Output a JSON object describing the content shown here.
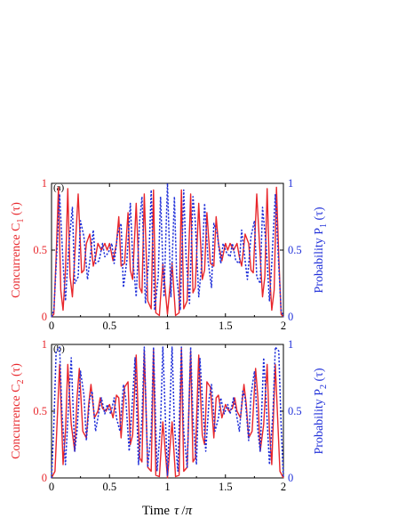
{
  "colors": {
    "concurrence": "#e8262b",
    "probability": "#1f2fd9",
    "axis": "#000000"
  },
  "figure": {
    "x_axis_label_parts": {
      "prefix": "Time",
      "tau": "τ",
      "slash": "/",
      "pi": "π"
    }
  },
  "chart_data": [
    {
      "type": "line",
      "panel_label": "(a)",
      "xlabel": "Time τ/π",
      "ylabel_left": "Concurrence C1 (τ)",
      "ylabel_left_parts": {
        "main": "Concurrence C",
        "sub": "1",
        "arg": " (τ)"
      },
      "ylabel_right": "Probability P1 (τ)",
      "ylabel_right_parts": {
        "main": "Probability P",
        "sub": "1",
        "arg": " (τ)"
      },
      "xlim": [
        0,
        2
      ],
      "ylim": [
        0,
        1
      ],
      "x_ticks": [
        "0",
        "0.5",
        "1",
        "1.5",
        "2"
      ],
      "y_ticks_left": [
        "0",
        "0.5",
        "1"
      ],
      "y_ticks_right": [
        "0",
        "0.5",
        "1"
      ],
      "grid": false,
      "series": [
        {
          "axis": "left",
          "style": "solid",
          "x": [
            0,
            0.02,
            0.04,
            0.06,
            0.08,
            0.1,
            0.12,
            0.14,
            0.16,
            0.18,
            0.2,
            0.23,
            0.26,
            0.28,
            0.3,
            0.33,
            0.36,
            0.38,
            0.4,
            0.43,
            0.46,
            0.48,
            0.5,
            0.53,
            0.56,
            0.58,
            0.6,
            0.63,
            0.66,
            0.68,
            0.7,
            0.73,
            0.76,
            0.78,
            0.8,
            0.83,
            0.86,
            0.88,
            0.9,
            0.93,
            0.96,
            1.0,
            1.04,
            1.07,
            1.1,
            1.12,
            1.14,
            1.17,
            1.2,
            1.22,
            1.24,
            1.27,
            1.3,
            1.32,
            1.34,
            1.37,
            1.4,
            1.42,
            1.44,
            1.47,
            1.5,
            1.52,
            1.54,
            1.57,
            1.6,
            1.62,
            1.64,
            1.67,
            1.7,
            1.72,
            1.74,
            1.77,
            1.8,
            1.82,
            1.84,
            1.86,
            1.88,
            1.9,
            1.92,
            1.94,
            1.96,
            1.98,
            2.0
          ],
          "y": [
            0,
            0.02,
            0.45,
            0.97,
            0.2,
            0.05,
            0.35,
            0.96,
            0.3,
            0.15,
            0.45,
            0.92,
            0.33,
            0.35,
            0.55,
            0.62,
            0.38,
            0.45,
            0.55,
            0.5,
            0.55,
            0.5,
            0.55,
            0.42,
            0.55,
            0.75,
            0.38,
            0.4,
            0.78,
            0.35,
            0.28,
            0.85,
            0.22,
            0.18,
            0.92,
            0.12,
            0.06,
            0.95,
            0.03,
            0.01,
            0.4,
            0.02,
            0.4,
            0.01,
            0.03,
            0.95,
            0.06,
            0.12,
            0.92,
            0.18,
            0.22,
            0.85,
            0.28,
            0.35,
            0.78,
            0.4,
            0.38,
            0.75,
            0.55,
            0.42,
            0.55,
            0.5,
            0.55,
            0.5,
            0.55,
            0.45,
            0.38,
            0.62,
            0.55,
            0.35,
            0.33,
            0.92,
            0.45,
            0.15,
            0.3,
            0.96,
            0.35,
            0.05,
            0.2,
            0.97,
            0.45,
            0.02,
            0
          ]
        },
        {
          "axis": "right",
          "style": "dotted",
          "x": [
            0,
            0.02,
            0.05,
            0.07,
            0.1,
            0.12,
            0.15,
            0.18,
            0.2,
            0.23,
            0.25,
            0.28,
            0.31,
            0.33,
            0.36,
            0.38,
            0.41,
            0.44,
            0.46,
            0.49,
            0.52,
            0.54,
            0.57,
            0.6,
            0.62,
            0.65,
            0.68,
            0.7,
            0.73,
            0.76,
            0.78,
            0.81,
            0.84,
            0.86,
            0.89,
            0.92,
            0.94,
            0.97,
            1.0,
            1.03,
            1.06,
            1.08,
            1.11,
            1.14,
            1.16,
            1.19,
            1.22,
            1.24,
            1.27,
            1.3,
            1.32,
            1.35,
            1.38,
            1.4,
            1.43,
            1.46,
            1.48,
            1.51,
            1.54,
            1.56,
            1.59,
            1.62,
            1.64,
            1.67,
            1.69,
            1.72,
            1.75,
            1.77,
            1.8,
            1.82,
            1.85,
            1.88,
            1.9,
            1.93,
            1.95,
            1.98,
            2.0
          ],
          "y": [
            0,
            0.05,
            0.55,
            0.92,
            0.4,
            0.12,
            0.55,
            0.82,
            0.25,
            0.3,
            0.72,
            0.6,
            0.28,
            0.42,
            0.65,
            0.4,
            0.42,
            0.55,
            0.45,
            0.48,
            0.55,
            0.4,
            0.62,
            0.7,
            0.22,
            0.42,
            0.85,
            0.45,
            0.15,
            0.72,
            0.9,
            0.1,
            0.45,
            0.95,
            0.05,
            0.3,
            0.9,
            0.15,
            1.0,
            0.15,
            0.9,
            0.3,
            0.05,
            0.95,
            0.45,
            0.1,
            0.9,
            0.72,
            0.15,
            0.45,
            0.85,
            0.42,
            0.22,
            0.7,
            0.62,
            0.4,
            0.55,
            0.48,
            0.45,
            0.55,
            0.42,
            0.4,
            0.65,
            0.42,
            0.28,
            0.6,
            0.72,
            0.3,
            0.25,
            0.82,
            0.55,
            0.12,
            0.4,
            0.92,
            0.55,
            0.05,
            0
          ]
        }
      ]
    },
    {
      "type": "line",
      "panel_label": "(b)",
      "xlabel": "Time τ/π",
      "ylabel_left": "Concurrence C2 (τ)",
      "ylabel_left_parts": {
        "main": "Concurrence C",
        "sub": "2",
        "arg": " (τ)"
      },
      "ylabel_right": "Probability P2 (τ)",
      "ylabel_right_parts": {
        "main": "Probability P",
        "sub": "2",
        "arg": " (τ)"
      },
      "xlim": [
        0,
        2
      ],
      "ylim": [
        0,
        1
      ],
      "x_ticks": [
        "0",
        "0.5",
        "1",
        "1.5",
        "2"
      ],
      "y_ticks_left": [
        "0",
        "0.5",
        "1"
      ],
      "y_ticks_right": [
        "0",
        "0.5",
        "1"
      ],
      "grid": false,
      "series": [
        {
          "axis": "left",
          "style": "solid",
          "x": [
            0,
            0.03,
            0.05,
            0.07,
            0.1,
            0.12,
            0.14,
            0.17,
            0.2,
            0.22,
            0.24,
            0.27,
            0.3,
            0.32,
            0.34,
            0.37,
            0.4,
            0.42,
            0.44,
            0.47,
            0.5,
            0.53,
            0.56,
            0.58,
            0.6,
            0.63,
            0.66,
            0.68,
            0.7,
            0.73,
            0.76,
            0.78,
            0.8,
            0.83,
            0.86,
            0.88,
            0.9,
            0.93,
            0.96,
            1.0,
            1.04,
            1.07,
            1.1,
            1.12,
            1.14,
            1.17,
            1.2,
            1.22,
            1.24,
            1.27,
            1.3,
            1.32,
            1.34,
            1.37,
            1.4,
            1.42,
            1.44,
            1.47,
            1.5,
            1.53,
            1.56,
            1.58,
            1.6,
            1.63,
            1.66,
            1.68,
            1.7,
            1.73,
            1.76,
            1.78,
            1.8,
            1.83,
            1.86,
            1.88,
            1.9,
            1.93,
            1.95,
            1.97,
            2.0
          ],
          "y": [
            0,
            0.05,
            0.45,
            0.85,
            0.1,
            0.35,
            0.85,
            0.4,
            0.2,
            0.6,
            0.82,
            0.35,
            0.3,
            0.55,
            0.7,
            0.45,
            0.5,
            0.6,
            0.52,
            0.5,
            0.55,
            0.45,
            0.62,
            0.6,
            0.3,
            0.68,
            0.72,
            0.25,
            0.32,
            0.92,
            0.15,
            0.12,
            0.95,
            0.08,
            0.05,
            0.97,
            0.02,
            0.01,
            0.42,
            0.0,
            0.42,
            0.01,
            0.02,
            0.97,
            0.05,
            0.08,
            0.95,
            0.12,
            0.15,
            0.92,
            0.32,
            0.25,
            0.72,
            0.68,
            0.3,
            0.6,
            0.62,
            0.45,
            0.55,
            0.5,
            0.52,
            0.6,
            0.5,
            0.45,
            0.7,
            0.55,
            0.3,
            0.35,
            0.82,
            0.6,
            0.2,
            0.4,
            0.85,
            0.35,
            0.1,
            0.85,
            0.45,
            0.05,
            0
          ]
        },
        {
          "axis": "right",
          "style": "dotted",
          "x": [
            0,
            0.02,
            0.04,
            0.07,
            0.09,
            0.12,
            0.15,
            0.17,
            0.2,
            0.22,
            0.25,
            0.28,
            0.3,
            0.33,
            0.35,
            0.38,
            0.41,
            0.43,
            0.46,
            0.48,
            0.51,
            0.54,
            0.56,
            0.59,
            0.62,
            0.64,
            0.67,
            0.7,
            0.72,
            0.75,
            0.78,
            0.8,
            0.83,
            0.86,
            0.88,
            0.91,
            0.94,
            0.96,
            1.0,
            1.04,
            1.06,
            1.09,
            1.12,
            1.14,
            1.17,
            1.2,
            1.22,
            1.25,
            1.28,
            1.3,
            1.33,
            1.36,
            1.38,
            1.41,
            1.44,
            1.46,
            1.49,
            1.52,
            1.54,
            1.57,
            1.59,
            1.62,
            1.65,
            1.67,
            1.7,
            1.72,
            1.75,
            1.78,
            1.8,
            1.83,
            1.85,
            1.88,
            1.91,
            1.93,
            1.96,
            1.98,
            2.0
          ],
          "y": [
            0,
            0.4,
            0.95,
            0.98,
            0.5,
            0.1,
            0.6,
            0.9,
            0.2,
            0.35,
            0.8,
            0.62,
            0.28,
            0.6,
            0.65,
            0.35,
            0.5,
            0.6,
            0.48,
            0.55,
            0.48,
            0.6,
            0.45,
            0.35,
            0.7,
            0.6,
            0.2,
            0.6,
            0.9,
            0.1,
            0.45,
            0.98,
            0.08,
            0.35,
            0.98,
            0.05,
            0.4,
            0.98,
            0.02,
            0.98,
            0.4,
            0.05,
            0.98,
            0.35,
            0.08,
            0.98,
            0.45,
            0.1,
            0.9,
            0.6,
            0.2,
            0.6,
            0.7,
            0.35,
            0.45,
            0.6,
            0.48,
            0.55,
            0.48,
            0.6,
            0.5,
            0.35,
            0.65,
            0.6,
            0.28,
            0.62,
            0.8,
            0.35,
            0.2,
            0.9,
            0.6,
            0.1,
            0.5,
            0.98,
            0.95,
            0.4,
            0
          ]
        }
      ]
    }
  ]
}
